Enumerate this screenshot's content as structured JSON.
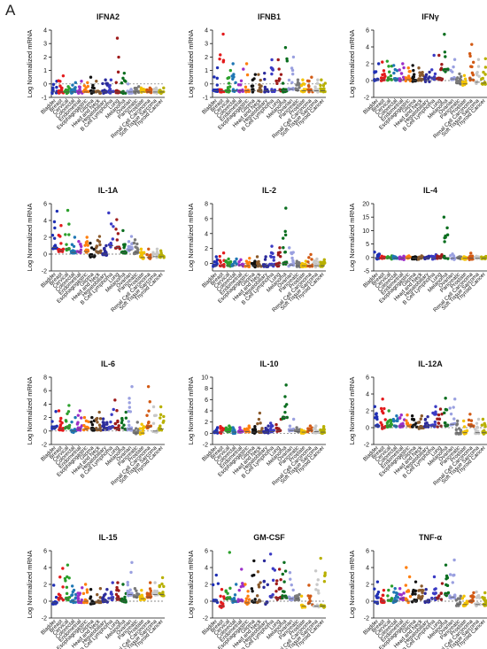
{
  "panel_label": "A",
  "chart_data": {
    "type": "scatter",
    "categories": [
      "Bladder",
      "Breast",
      "Cervical",
      "Colorectal",
      "Endometrial",
      "Esophagogastric",
      "Glioma",
      "Head and Neck",
      "Hepatobiliary",
      "B Cell Lymphoma",
      "Lung",
      "Melanoma",
      "Ovarian",
      "Pancreatic",
      "Prostate",
      "Renal Cell Carcinoma",
      "Soft Tissue Sarcoma",
      "Thyroid Cancer"
    ],
    "colors": [
      "#1f2fb4",
      "#e31a1c",
      "#2ca02c",
      "#1f77b4",
      "#9b2fc8",
      "#ff7f0e",
      "#111111",
      "#8b5a2b",
      "#2b2b9b",
      "#3b3bc4",
      "#9e1b1b",
      "#0a6e1f",
      "#9aa0e0",
      "#7a7a7a",
      "#f2c200",
      "#d25a14",
      "#c8c8c8",
      "#b8b000"
    ],
    "ylabel": "Log Normalized mRNA",
    "panels": [
      {
        "title": "IFNA2",
        "ylim": [
          -1,
          4
        ],
        "yticks": [
          -1,
          0,
          1,
          2,
          3,
          4
        ],
        "medians": [
          -0.6,
          -0.6,
          -0.6,
          -0.6,
          -0.6,
          -0.6,
          -0.6,
          -0.6,
          -0.6,
          -0.6,
          -0.6,
          -0.6,
          -0.6,
          -0.6,
          -0.6,
          -0.6,
          -0.6,
          -0.6
        ],
        "maxima": [
          0.2,
          0.6,
          -0.2,
          0.1,
          0.2,
          0.1,
          0.5,
          0.2,
          0.3,
          0.3,
          3.4,
          0.8,
          0.0,
          -0.2,
          -0.3,
          -0.3,
          -0.3,
          -0.3
        ]
      },
      {
        "title": "IFNB1",
        "ylim": [
          -1,
          4
        ],
        "yticks": [
          -1,
          0,
          1,
          2,
          3,
          4
        ],
        "medians": [
          -0.5,
          -0.5,
          -0.5,
          -0.5,
          -0.5,
          -0.5,
          -0.5,
          -0.5,
          -0.5,
          -0.5,
          -0.5,
          -0.5,
          -0.4,
          -0.5,
          -0.5,
          -0.5,
          -0.5,
          -0.5
        ],
        "maxima": [
          1.2,
          3.7,
          1.0,
          1.5,
          1.1,
          1.5,
          0.7,
          0.7,
          0.8,
          1.8,
          1.8,
          2.7,
          2.0,
          0.3,
          0.3,
          0.5,
          0.3,
          0.3
        ]
      },
      {
        "title": "IFNγ",
        "ylim": [
          -2,
          6
        ],
        "yticks": [
          -2,
          0,
          2,
          4,
          6
        ],
        "medians": [
          0.1,
          0.1,
          0.2,
          0.1,
          0.1,
          0.1,
          0.0,
          0.1,
          0.0,
          0.3,
          0.2,
          1.2,
          0.2,
          -0.4,
          -0.4,
          0.2,
          -0.2,
          -0.3
        ],
        "maxima": [
          2.0,
          2.2,
          2.3,
          1.8,
          2.0,
          1.5,
          1.8,
          1.5,
          1.0,
          3.0,
          3.0,
          5.5,
          2.5,
          0.8,
          0.6,
          4.3,
          2.5,
          2.6
        ]
      },
      {
        "title": "IL-1A",
        "ylim": [
          -2,
          6
        ],
        "yticks": [
          -2,
          0,
          2,
          4,
          6
        ],
        "medians": [
          0.8,
          0.4,
          0.6,
          0.2,
          0.3,
          0.3,
          -0.2,
          0.3,
          0.0,
          1.0,
          0.8,
          0.2,
          0.5,
          0.2,
          -0.4,
          -0.4,
          -0.3,
          -0.3
        ],
        "maxima": [
          5.1,
          3.4,
          5.2,
          2.0,
          1.5,
          2.0,
          1.3,
          2.1,
          1.0,
          4.9,
          4.1,
          2.8,
          2.1,
          1.7,
          0.6,
          0.6,
          0.6,
          0.4
        ]
      },
      {
        "title": "IL-2",
        "ylim": [
          -1,
          8
        ],
        "yticks": [
          0,
          2,
          4,
          6,
          8
        ],
        "medians": [
          -0.3,
          -0.3,
          -0.3,
          -0.3,
          -0.3,
          -0.3,
          -0.3,
          -0.3,
          -0.3,
          -0.2,
          -0.2,
          0.0,
          -0.2,
          -0.3,
          -0.3,
          -0.3,
          -0.3,
          -0.3
        ],
        "maxima": [
          0.9,
          1.4,
          0.6,
          0.6,
          0.5,
          0.7,
          0.3,
          0.9,
          0.9,
          2.3,
          2.1,
          7.4,
          2.1,
          0.3,
          0.3,
          1.2,
          0.6,
          0.5
        ]
      },
      {
        "title": "IL-4",
        "ylim": [
          -5,
          20
        ],
        "yticks": [
          -5,
          0,
          5,
          10,
          15,
          20
        ],
        "medians": [
          -0.3,
          -0.3,
          -0.3,
          -0.3,
          -0.3,
          -0.3,
          -0.3,
          -0.3,
          -0.3,
          -0.3,
          -0.3,
          0.0,
          -0.3,
          -0.3,
          -0.3,
          -0.3,
          -0.3,
          -0.3
        ],
        "maxima": [
          2.0,
          0.5,
          0.6,
          0.5,
          0.5,
          0.6,
          0.3,
          0.6,
          0.5,
          1.0,
          1.0,
          15.0,
          1.3,
          0.3,
          0.3,
          1.6,
          0.5,
          0.4
        ]
      },
      {
        "title": "IL-6",
        "ylim": [
          -2,
          8
        ],
        "yticks": [
          -2,
          0,
          2,
          4,
          6,
          8
        ],
        "medians": [
          0.5,
          0.3,
          0.5,
          0.0,
          0.3,
          0.3,
          0.3,
          0.3,
          0.3,
          0.5,
          0.3,
          0.3,
          0.3,
          -0.3,
          -0.3,
          0.6,
          0.0,
          0.3
        ],
        "maxima": [
          2.9,
          3.0,
          3.8,
          2.0,
          3.0,
          2.0,
          2.0,
          2.8,
          1.8,
          3.2,
          4.6,
          2.8,
          6.6,
          1.3,
          1.0,
          6.6,
          3.6,
          3.6
        ]
      },
      {
        "title": "IL-10",
        "ylim": [
          -2,
          10
        ],
        "yticks": [
          -2,
          0,
          2,
          4,
          6,
          8,
          10
        ],
        "medians": [
          0.2,
          0.2,
          0.3,
          0.2,
          0.3,
          0.3,
          0.2,
          0.3,
          0.2,
          0.3,
          0.5,
          2.8,
          0.5,
          0.3,
          0.2,
          0.5,
          0.3,
          0.2
        ],
        "maxima": [
          1.0,
          1.2,
          1.3,
          1.0,
          1.0,
          1.3,
          1.2,
          3.6,
          1.3,
          1.8,
          2.5,
          8.6,
          2.5,
          1.0,
          0.6,
          1.3,
          1.3,
          1.2
        ]
      },
      {
        "title": "IL-12A",
        "ylim": [
          -2,
          6
        ],
        "yticks": [
          -2,
          0,
          2,
          4,
          6
        ],
        "medians": [
          0.2,
          0.0,
          0.2,
          0.2,
          0.2,
          0.2,
          0.2,
          0.0,
          0.2,
          0.2,
          0.2,
          0.3,
          0.4,
          -0.6,
          -0.6,
          0.2,
          -0.6,
          -0.6
        ],
        "maxima": [
          2.5,
          3.4,
          2.0,
          1.4,
          1.5,
          1.5,
          1.4,
          1.4,
          1.3,
          2.5,
          2.2,
          3.5,
          3.4,
          0.8,
          0.8,
          1.6,
          1.0,
          1.0
        ]
      },
      {
        "title": "IL-15",
        "ylim": [
          -2,
          6
        ],
        "yticks": [
          -2,
          0,
          2,
          4,
          6
        ],
        "medians": [
          -0.2,
          0.3,
          0.3,
          0.0,
          0.0,
          0.0,
          -0.2,
          0.0,
          0.0,
          0.3,
          0.3,
          0.0,
          0.8,
          0.5,
          0.3,
          0.5,
          0.8,
          0.8
        ],
        "maxima": [
          1.9,
          3.9,
          4.3,
          1.8,
          1.6,
          2.0,
          1.4,
          1.5,
          1.4,
          2.2,
          2.2,
          2.0,
          4.6,
          1.5,
          1.3,
          2.2,
          2.2,
          2.8
        ]
      },
      {
        "title": "GM-CSF",
        "ylim": [
          -2,
          6
        ],
        "yticks": [
          -2,
          0,
          2,
          4,
          6
        ],
        "medians": [
          0.0,
          -0.6,
          0.3,
          0.0,
          0.0,
          -0.2,
          0.0,
          0.0,
          -0.2,
          0.5,
          0.3,
          0.5,
          0.3,
          0.3,
          -0.6,
          -0.3,
          -0.6,
          -0.6
        ],
        "maxima": [
          3.1,
          1.4,
          5.8,
          2.0,
          3.8,
          2.0,
          4.8,
          3.5,
          4.8,
          5.6,
          3.8,
          4.6,
          3.4,
          0.8,
          0.6,
          1.9,
          3.6,
          5.1
        ]
      },
      {
        "title": "TNF-α",
        "ylim": [
          -2,
          6
        ],
        "yticks": [
          -2,
          0,
          2,
          4,
          6
        ],
        "medians": [
          -0.2,
          0.0,
          0.2,
          0.0,
          0.3,
          0.0,
          0.0,
          0.3,
          0.0,
          0.3,
          0.3,
          0.8,
          0.5,
          -0.4,
          -0.4,
          0.0,
          -0.4,
          -0.4
        ],
        "maxima": [
          2.3,
          1.3,
          1.8,
          1.5,
          1.5,
          4.0,
          2.3,
          1.8,
          1.4,
          2.9,
          2.1,
          4.3,
          4.9,
          0.6,
          0.6,
          1.0,
          1.1,
          1.0
        ]
      }
    ]
  }
}
